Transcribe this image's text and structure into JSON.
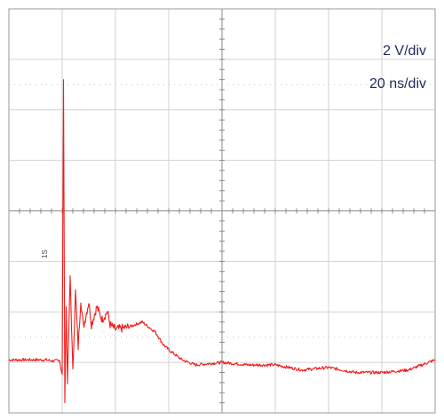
{
  "scope": {
    "vertical_scale": "2 V/div",
    "time_scale": "20 ns/div",
    "trigger_marker": "1S"
  },
  "chart_data": {
    "type": "line",
    "title": "",
    "xlabel": "",
    "ylabel": "",
    "x_unit": "ns",
    "y_unit": "V",
    "xlim": [
      0,
      160
    ],
    "ylim": [
      -8,
      8
    ],
    "grid": true,
    "divisions": {
      "x": 8,
      "y": 8
    },
    "series": [
      {
        "name": "",
        "color": "#ee1c1c",
        "x": [
          0,
          12,
          14,
          17,
          19,
          20,
          20.5,
          21,
          21.5,
          22,
          23,
          24,
          25,
          26,
          27,
          28,
          30,
          31,
          33,
          35,
          37,
          38,
          40,
          45,
          50,
          55,
          58,
          60,
          65,
          70,
          80,
          90,
          100,
          110,
          120,
          130,
          140,
          150,
          160
        ],
        "y": [
          -5.9,
          -5.9,
          -5.9,
          -5.95,
          -5.9,
          -6.5,
          5.2,
          -7.6,
          -3.8,
          -6.8,
          -2.6,
          -6.4,
          -3.2,
          -5.4,
          -3.5,
          -4.6,
          -3.6,
          -4.5,
          -3.8,
          -4.3,
          -4.0,
          -4.5,
          -4.7,
          -4.6,
          -4.4,
          -4.8,
          -5.3,
          -5.5,
          -5.9,
          -6.1,
          -6.0,
          -6.1,
          -6.1,
          -6.3,
          -6.2,
          -6.4,
          -6.4,
          -6.3,
          -5.9
        ]
      }
    ]
  }
}
